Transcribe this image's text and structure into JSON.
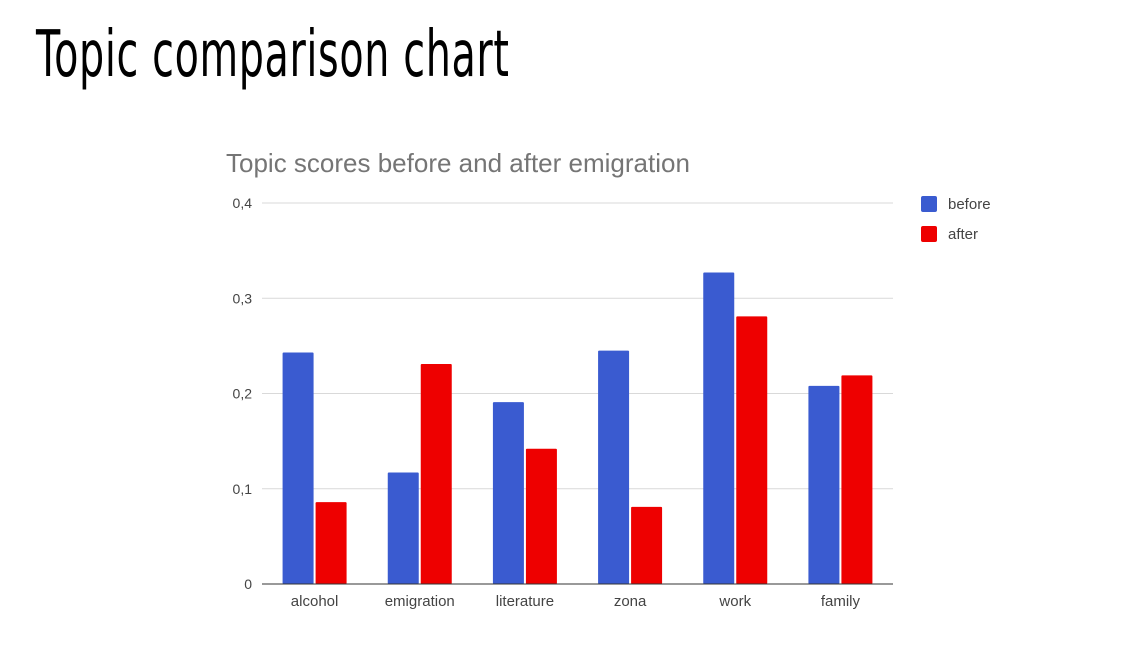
{
  "slide": {
    "title": "Topic comparison chart"
  },
  "chart_data": {
    "type": "bar",
    "title": "Topic scores before and after emigration",
    "xlabel": "",
    "ylabel": "",
    "ylim": [
      0,
      0.4
    ],
    "yticks": [
      0,
      0.1,
      0.2,
      0.3,
      0.4
    ],
    "ytick_labels": [
      "0",
      "0,1",
      "0,2",
      "0,3",
      "0,4"
    ],
    "categories": [
      "alcohol",
      "emigration",
      "literature",
      "zona",
      "work",
      "family"
    ],
    "series": [
      {
        "name": "before",
        "color": "#3a5bd0",
        "values": [
          0.243,
          0.117,
          0.191,
          0.245,
          0.327,
          0.208
        ]
      },
      {
        "name": "after",
        "color": "#ee0000",
        "values": [
          0.086,
          0.231,
          0.142,
          0.081,
          0.281,
          0.219
        ]
      }
    ],
    "grid": true,
    "legend": "top-right"
  }
}
